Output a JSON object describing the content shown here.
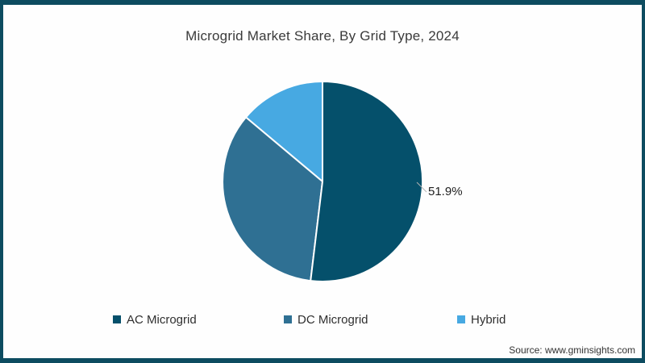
{
  "title": "Microgrid Market Share, By Grid Type, 2024",
  "source": "Source: www.gminsights.com",
  "annotation": {
    "ac_share_label": "51.9%"
  },
  "colors": {
    "frame_border": "#0d4c60",
    "background": "#fefefe",
    "slice_divider": "#ffffff",
    "leader_line": "#b3b3b3",
    "title_text": "#3a3a3a",
    "legend_text": "#2f2f2f"
  },
  "chart_data": {
    "type": "pie",
    "title": "Microgrid Market Share, By Grid Type, 2024",
    "categories": [
      "AC Microgrid",
      "DC Microgrid",
      "Hybrid"
    ],
    "values": [
      51.9,
      34.2,
      13.9
    ],
    "slices": [
      {
        "label": "AC Microgrid",
        "value": 51.9,
        "color": "#05506b"
      },
      {
        "label": "DC Microgrid",
        "value": 34.2,
        "color": "#2f7093"
      },
      {
        "label": "Hybrid",
        "value": 13.9,
        "color": "#47a9e2"
      }
    ],
    "data_labels": [
      "51.9%"
    ],
    "start_angle_deg": 0,
    "direction": "clockwise",
    "legend_position": "bottom",
    "grid": false
  }
}
